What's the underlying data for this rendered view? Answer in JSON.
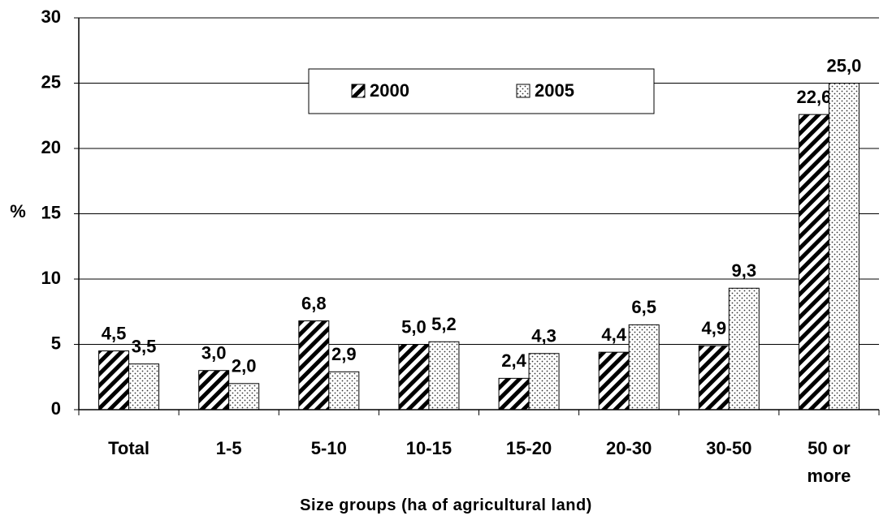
{
  "chart_data": {
    "type": "bar",
    "x_label": "Size groups (ha of agricultural land)",
    "y_label": "%",
    "categories": [
      "Total",
      "1-5",
      "5-10",
      "10-15",
      "15-20",
      "20-30",
      "30-50",
      "50 or more"
    ],
    "series": [
      {
        "name": "2000",
        "color": "#000000",
        "pattern": "hatch",
        "values": [
          4.5,
          3.0,
          6.8,
          5.0,
          2.4,
          4.4,
          4.9,
          22.6
        ],
        "value_labels": [
          "4,5",
          "3,0",
          "6,8",
          "5,0",
          "2,4",
          "4,4",
          "4,9",
          "22,6"
        ]
      },
      {
        "name": "2005",
        "color": "#000000",
        "pattern": "dots",
        "values": [
          3.5,
          2.0,
          2.9,
          5.2,
          4.3,
          6.5,
          9.3,
          25.0
        ],
        "value_labels": [
          "3,5",
          "2,0",
          "2,9",
          "5,2",
          "4,3",
          "6,5",
          "9,3",
          "25,0"
        ]
      }
    ],
    "ylim": [
      0,
      30
    ],
    "yticks": [
      0,
      5,
      10,
      15,
      20,
      25,
      30
    ],
    "grid": true,
    "legend": "top-center"
  }
}
